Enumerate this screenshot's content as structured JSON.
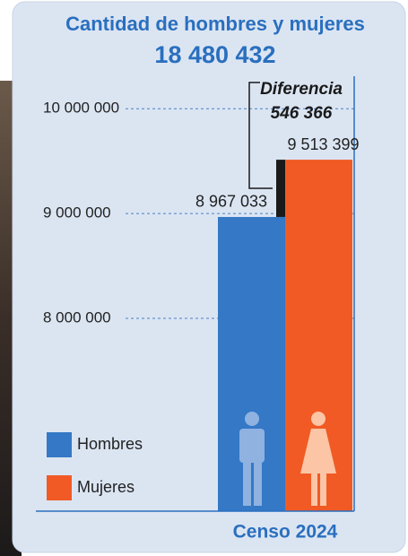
{
  "chart_data": {
    "type": "bar",
    "title": "Cantidad de hombres y mujeres",
    "total": {
      "value": 18480432,
      "label": "18 480 432"
    },
    "categories": [
      "Censo 2024"
    ],
    "series": [
      {
        "name": "Hombres",
        "color": "#3478c6",
        "values": [
          8967033
        ],
        "value_labels": [
          "8 967 033"
        ]
      },
      {
        "name": "Mujeres",
        "color": "#f15a24",
        "values": [
          9513399
        ],
        "value_labels": [
          "9 513 399"
        ]
      }
    ],
    "annotation": {
      "text": "Diferencia",
      "value": 546366,
      "value_label": "546 366"
    },
    "ylim": [
      6160000,
      10310000
    ],
    "yticks": [
      {
        "value": 8000000,
        "label": "8 000 000"
      },
      {
        "value": 9000000,
        "label": "9 000 000"
      },
      {
        "value": 10000000,
        "label": "10 000 000"
      }
    ],
    "grid": true
  }
}
